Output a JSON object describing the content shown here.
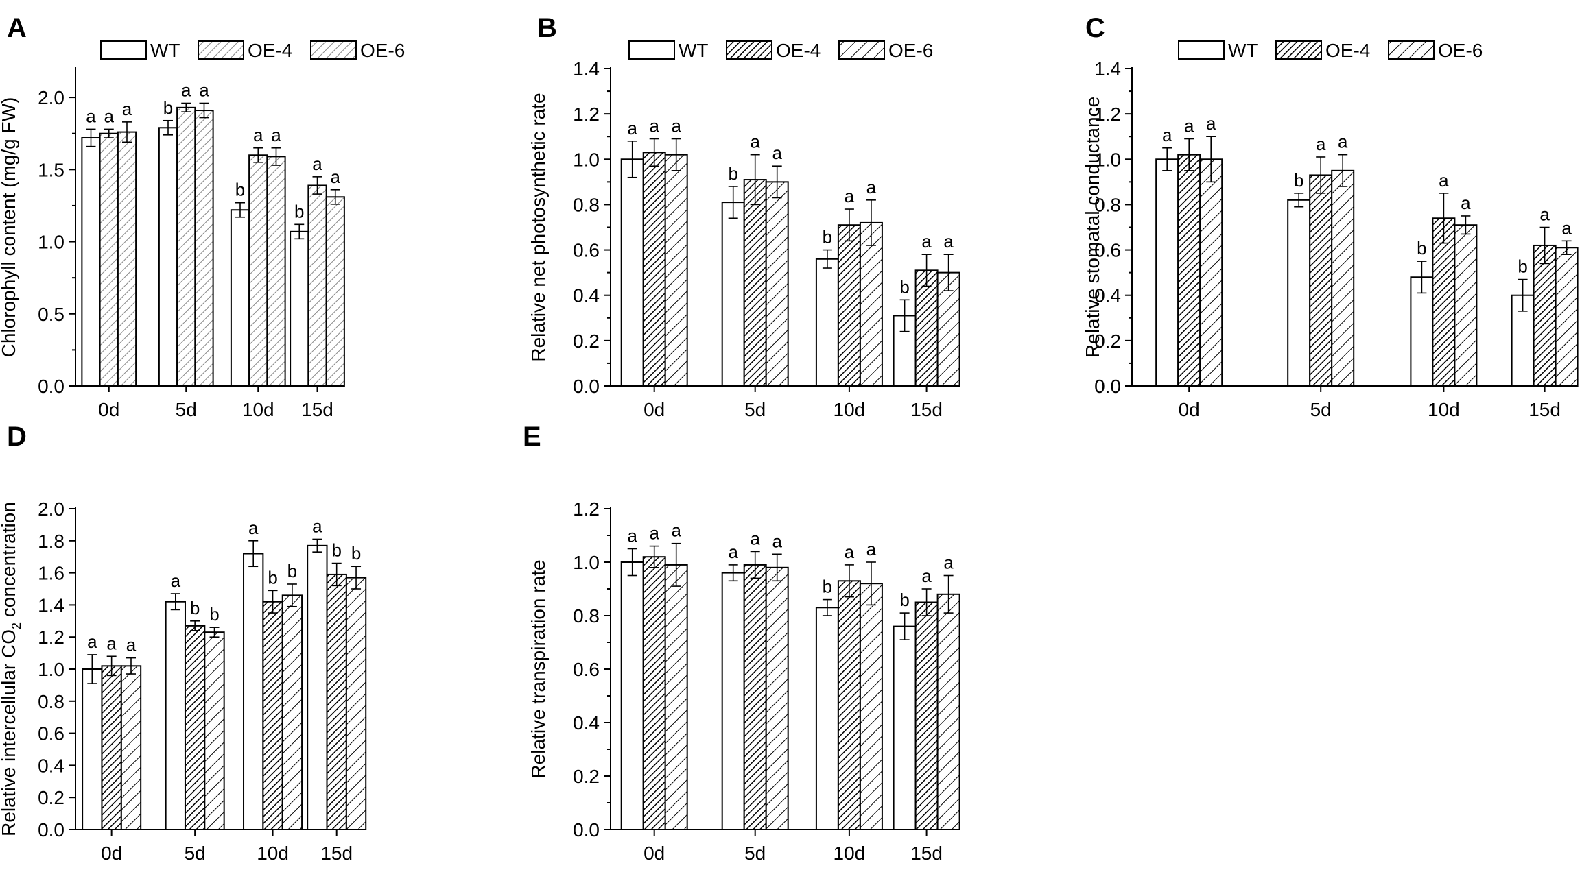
{
  "patterns": {
    "WT": {
      "fill": "#ffffff",
      "hatch": "none"
    },
    "OE-4": {
      "fill": "#ffffff",
      "hatch": "dense",
      "color": "#000000"
    },
    "OE-6": {
      "fill": "#ffffff",
      "hatch": "sparse",
      "color": "#000000"
    },
    "OE-6-light": {
      "fill": "#ffffff",
      "hatch": "sparse",
      "color": "#888888"
    }
  },
  "chart_data": [
    {
      "panel": "A",
      "type": "bar",
      "categories": [
        "0d",
        "5d",
        "10d",
        "15d"
      ],
      "ylabel": "Chlorophyll content (mg/g FW)",
      "ylim": [
        0,
        2.2
      ],
      "yticks": [
        "0.0",
        "0.5",
        "1.0",
        "1.5",
        "2.0"
      ],
      "yticks_values": [
        0,
        0.5,
        1.0,
        1.5,
        2.0
      ],
      "minor_step": 0.25,
      "legend": [
        "WT",
        "OE-4",
        "OE-6"
      ],
      "series": [
        {
          "name": "WT",
          "pattern": "WT",
          "values": [
            1.72,
            1.79,
            1.22,
            1.07
          ],
          "errors": [
            0.06,
            0.05,
            0.05,
            0.05
          ],
          "letters": [
            "a",
            "b",
            "b",
            "b"
          ]
        },
        {
          "name": "OE-4",
          "pattern": "OE-6-light",
          "values": [
            1.75,
            1.93,
            1.6,
            1.39
          ],
          "errors": [
            0.03,
            0.03,
            0.05,
            0.06
          ],
          "letters": [
            "a",
            "a",
            "a",
            "a"
          ]
        },
        {
          "name": "OE-6",
          "pattern": "OE-6-light",
          "values": [
            1.76,
            1.91,
            1.59,
            1.31
          ],
          "errors": [
            0.07,
            0.05,
            0.06,
            0.05
          ],
          "letters": [
            "a",
            "a",
            "a",
            "a"
          ]
        }
      ]
    },
    {
      "panel": "B",
      "type": "bar",
      "categories": [
        "0d",
        "5d",
        "10d",
        "15d"
      ],
      "ylabel": "Relative net photosynthetic rate",
      "ylim": [
        0,
        1.4
      ],
      "yticks": [
        "0.0",
        "0.2",
        "0.4",
        "0.6",
        "0.8",
        "1.0",
        "1.2",
        "1.4"
      ],
      "yticks_values": [
        0,
        0.2,
        0.4,
        0.6,
        0.8,
        1.0,
        1.2,
        1.4
      ],
      "minor_step": 0.1,
      "legend": [
        "WT",
        "OE-4",
        "OE-6"
      ],
      "series": [
        {
          "name": "WT",
          "pattern": "WT",
          "values": [
            1.0,
            0.81,
            0.56,
            0.31
          ],
          "errors": [
            0.08,
            0.07,
            0.04,
            0.07
          ],
          "letters": [
            "a",
            "b",
            "b",
            "b"
          ]
        },
        {
          "name": "OE-4",
          "pattern": "OE-4",
          "values": [
            1.03,
            0.91,
            0.71,
            0.51
          ],
          "errors": [
            0.06,
            0.11,
            0.07,
            0.07
          ],
          "letters": [
            "a",
            "a",
            "a",
            "a"
          ]
        },
        {
          "name": "OE-6",
          "pattern": "OE-6",
          "values": [
            1.02,
            0.9,
            0.72,
            0.5
          ],
          "errors": [
            0.07,
            0.07,
            0.1,
            0.08
          ],
          "letters": [
            "a",
            "a",
            "a",
            "a"
          ]
        }
      ]
    },
    {
      "panel": "C",
      "type": "bar",
      "categories": [
        "0d",
        "5d",
        "10d",
        "15d"
      ],
      "ylabel": "Relative stomatal conductance",
      "ylim": [
        0,
        1.4
      ],
      "yticks": [
        "0.0",
        "0.2",
        "0.4",
        "0.6",
        "0.8",
        "1.0",
        "1.2",
        "1.4"
      ],
      "yticks_values": [
        0,
        0.2,
        0.4,
        0.6,
        0.8,
        1.0,
        1.2,
        1.4
      ],
      "minor_step": 0.1,
      "legend": [
        "WT",
        "OE-4",
        "OE-6"
      ],
      "series": [
        {
          "name": "WT",
          "pattern": "WT",
          "values": [
            1.0,
            0.82,
            0.48,
            0.4
          ],
          "errors": [
            0.05,
            0.03,
            0.07,
            0.07
          ],
          "letters": [
            "a",
            "b",
            "b",
            "b"
          ]
        },
        {
          "name": "OE-4",
          "pattern": "OE-4",
          "values": [
            1.02,
            0.93,
            0.74,
            0.62
          ],
          "errors": [
            0.07,
            0.08,
            0.11,
            0.08
          ],
          "letters": [
            "a",
            "a",
            "a",
            "a"
          ]
        },
        {
          "name": "OE-6",
          "pattern": "OE-6",
          "values": [
            1.0,
            0.95,
            0.71,
            0.61
          ],
          "errors": [
            0.1,
            0.07,
            0.04,
            0.03
          ],
          "letters": [
            "a",
            "a",
            "a",
            "a"
          ]
        }
      ]
    },
    {
      "panel": "D",
      "type": "bar",
      "categories": [
        "0d",
        "5d",
        "10d",
        "15d"
      ],
      "ylabel": "Relative intercellular CO2 concentration",
      "ylabel_parts": {
        "main": "Relative intercellular CO",
        "sub": "2",
        "tail": " concentration"
      },
      "ylim": [
        0,
        2.0
      ],
      "yticks": [
        "0.0",
        "0.2",
        "0.4",
        "0.6",
        "0.8",
        "1.0",
        "1.2",
        "1.4",
        "1.6",
        "1.8",
        "2.0"
      ],
      "yticks_values": [
        0,
        0.2,
        0.4,
        0.6,
        0.8,
        1.0,
        1.2,
        1.4,
        1.6,
        1.8,
        2.0
      ],
      "minor_step": 0,
      "series": [
        {
          "name": "WT",
          "pattern": "WT",
          "values": [
            1.0,
            1.42,
            1.72,
            1.77
          ],
          "errors": [
            0.09,
            0.05,
            0.08,
            0.04
          ],
          "letters": [
            "a",
            "a",
            "a",
            "a"
          ]
        },
        {
          "name": "OE-4",
          "pattern": "OE-4",
          "values": [
            1.02,
            1.27,
            1.42,
            1.59
          ],
          "errors": [
            0.06,
            0.03,
            0.07,
            0.07
          ],
          "letters": [
            "a",
            "b",
            "b",
            "b"
          ]
        },
        {
          "name": "OE-6",
          "pattern": "OE-6",
          "values": [
            1.02,
            1.23,
            1.46,
            1.57
          ],
          "errors": [
            0.05,
            0.03,
            0.07,
            0.07
          ],
          "letters": [
            "a",
            "b",
            "b",
            "b"
          ]
        }
      ]
    },
    {
      "panel": "E",
      "type": "bar",
      "categories": [
        "0d",
        "5d",
        "10d",
        "15d"
      ],
      "ylabel": "Relative transpiration rate",
      "ylim": [
        0,
        1.2
      ],
      "yticks": [
        "0.0",
        "0.2",
        "0.4",
        "0.6",
        "0.8",
        "1.0",
        "1.2"
      ],
      "yticks_values": [
        0,
        0.2,
        0.4,
        0.6,
        0.8,
        1.0,
        1.2
      ],
      "minor_step": 0.1,
      "series": [
        {
          "name": "WT",
          "pattern": "WT",
          "values": [
            1.0,
            0.96,
            0.83,
            0.76
          ],
          "errors": [
            0.05,
            0.03,
            0.03,
            0.05
          ],
          "letters": [
            "a",
            "a",
            "b",
            "b"
          ]
        },
        {
          "name": "OE-4",
          "pattern": "OE-4",
          "values": [
            1.02,
            0.99,
            0.93,
            0.85
          ],
          "errors": [
            0.04,
            0.05,
            0.06,
            0.05
          ],
          "letters": [
            "a",
            "a",
            "a",
            "a"
          ]
        },
        {
          "name": "OE-6",
          "pattern": "OE-6",
          "values": [
            0.99,
            0.98,
            0.92,
            0.88
          ],
          "errors": [
            0.08,
            0.05,
            0.08,
            0.07
          ],
          "letters": [
            "a",
            "a",
            "a",
            "a"
          ]
        }
      ]
    }
  ]
}
